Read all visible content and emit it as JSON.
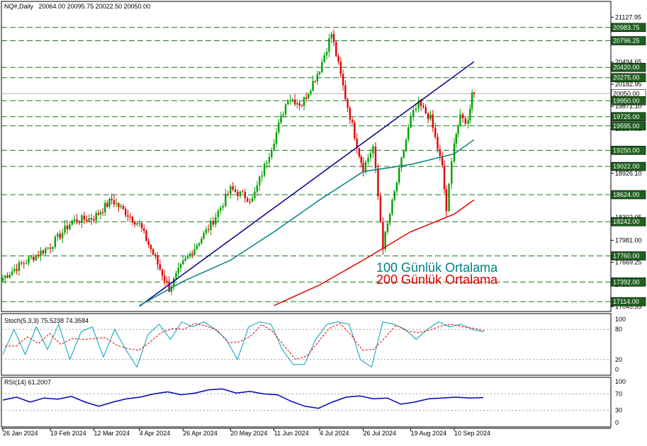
{
  "header": {
    "symbol": "NQ#,Daily",
    "ohlc": "20064.00 20095.75 20022.50 20050.00"
  },
  "colors": {
    "bull": "#00a000",
    "bear": "#e00000",
    "trendline": "#000080",
    "ma100": "#008080",
    "ma200": "#e00000",
    "stoch_main": "#00a0c0",
    "stoch_signal": "#e00000",
    "rsi": "#0000c0",
    "grid_dash": "#1a7a1a"
  },
  "annotations": {
    "ma100_label": "100 Günlük Ortalama",
    "ma200_label": "200 Günlük Ortalama"
  },
  "stoch": {
    "title": "Stoch(5,3,3) 75.5238 74.3584",
    "levels": [
      "100",
      "80",
      "20",
      "0"
    ]
  },
  "rsi": {
    "title": "RSI(14) 61.2007",
    "levels": [
      "100",
      "70",
      "30",
      "0"
    ]
  },
  "chart_data": {
    "type": "candlestick",
    "price_scale": {
      "plain_ticks": [
        "21127.95",
        "20494.65",
        "20182.95",
        "19871.10",
        "19554.05",
        "18926.10",
        "18302.05",
        "17981.00",
        "17669.25",
        "17357.40",
        "17045.55"
      ],
      "boxed_levels": [
        "20983.75",
        "20796.25",
        "20420.00",
        "20275.00",
        "20050.00",
        "19950.00",
        "19725.00",
        "19595.00",
        "19250.00",
        "19022.00",
        "18624.00",
        "18242.00",
        "17760.00",
        "17392.00",
        "17114.00"
      ],
      "current_price": "20050.00"
    },
    "x_labels": [
      "26 Jan 2024",
      "19 Feb 2024",
      "12 Mar 2024",
      "4 Apr 2024",
      "26 Apr 2024",
      "20 May 2024",
      "11 Jun 2024",
      "4 Jul 2024",
      "26 Jul 2024",
      "19 Aug 2024",
      "10 Sep 2024"
    ],
    "ohlc_path": [
      {
        "date": "26 Jan 2024",
        "close": 17450
      },
      {
        "date": "2 Feb 2024",
        "close": 17600
      },
      {
        "date": "19 Feb 2024",
        "close": 17900
      },
      {
        "date": "1 Mar 2024",
        "close": 18250
      },
      {
        "date": "12 Mar 2024",
        "close": 18300
      },
      {
        "date": "21 Mar 2024",
        "close": 18550
      },
      {
        "date": "4 Apr 2024",
        "close": 18200
      },
      {
        "date": "19 Apr 2024",
        "close": 17300
      },
      {
        "date": "26 Apr 2024",
        "close": 17650
      },
      {
        "date": "10 May 2024",
        "close": 18200
      },
      {
        "date": "20 May 2024",
        "close": 18700
      },
      {
        "date": "31 May 2024",
        "close": 18550
      },
      {
        "date": "11 Jun 2024",
        "close": 19400
      },
      {
        "date": "18 Jun 2024",
        "close": 20000
      },
      {
        "date": "25 Jun 2024",
        "close": 19900
      },
      {
        "date": "4 Jul 2024",
        "close": 20400
      },
      {
        "date": "10 Jul 2024",
        "close": 20900
      },
      {
        "date": "17 Jul 2024",
        "close": 20000
      },
      {
        "date": "24 Jul 2024",
        "close": 19200
      },
      {
        "date": "26 Jul 2024",
        "close": 19000
      },
      {
        "date": "31 Jul 2024",
        "close": 19300
      },
      {
        "date": "5 Aug 2024",
        "close": 17900
      },
      {
        "date": "12 Aug 2024",
        "close": 18800
      },
      {
        "date": "19 Aug 2024",
        "close": 19700
      },
      {
        "date": "23 Aug 2024",
        "close": 19900
      },
      {
        "date": "29 Aug 2024",
        "close": 19700
      },
      {
        "date": "4 Sep 2024",
        "close": 19000
      },
      {
        "date": "6 Sep 2024",
        "close": 18400
      },
      {
        "date": "10 Sep 2024",
        "close": 19400
      },
      {
        "date": "13 Sep 2024",
        "close": 19700
      },
      {
        "date": "17 Sep 2024",
        "close": 19650
      },
      {
        "date": "19 Sep 2024",
        "close": 20100
      },
      {
        "date": "20 Sep 2024",
        "close": 20050
      }
    ],
    "trendline": [
      {
        "date": "4 Apr 2024",
        "value": 17050
      },
      {
        "date": "20 Sep 2024",
        "value": 20500
      }
    ],
    "ma100": [
      {
        "date": "4 Apr 2024",
        "value": 17060
      },
      {
        "date": "26 Apr 2024",
        "value": 17400
      },
      {
        "date": "20 May 2024",
        "value": 17700
      },
      {
        "date": "11 Jun 2024",
        "value": 18100
      },
      {
        "date": "4 Jul 2024",
        "value": 18550
      },
      {
        "date": "26 Jul 2024",
        "value": 18950
      },
      {
        "date": "19 Aug 2024",
        "value": 19050
      },
      {
        "date": "10 Sep 2024",
        "value": 19200
      },
      {
        "date": "20 Sep 2024",
        "value": 19400
      }
    ],
    "ma200": [
      {
        "date": "11 Jun 2024",
        "value": 17060
      },
      {
        "date": "4 Jul 2024",
        "value": 17350
      },
      {
        "date": "26 Jul 2024",
        "value": 17700
      },
      {
        "date": "19 Aug 2024",
        "value": 18100
      },
      {
        "date": "10 Sep 2024",
        "value": 18350
      },
      {
        "date": "20 Sep 2024",
        "value": 18550
      }
    ],
    "stoch_k": [
      30,
      80,
      30,
      85,
      40,
      90,
      20,
      75,
      85,
      25,
      80,
      40,
      5,
      70,
      90,
      60,
      95,
      85,
      95,
      80,
      60,
      20,
      85,
      95,
      90,
      40,
      10,
      10,
      60,
      90,
      95,
      90,
      20,
      5,
      95,
      90,
      80,
      60,
      80,
      95,
      85,
      90,
      80,
      75
    ],
    "rsi_values": [
      55,
      62,
      50,
      60,
      57,
      64,
      50,
      40,
      50,
      58,
      62,
      70,
      75,
      68,
      72,
      80,
      82,
      72,
      76,
      70,
      68,
      52,
      40,
      35,
      50,
      62,
      65,
      58,
      60,
      45,
      50,
      58,
      60,
      62,
      60,
      61
    ]
  }
}
